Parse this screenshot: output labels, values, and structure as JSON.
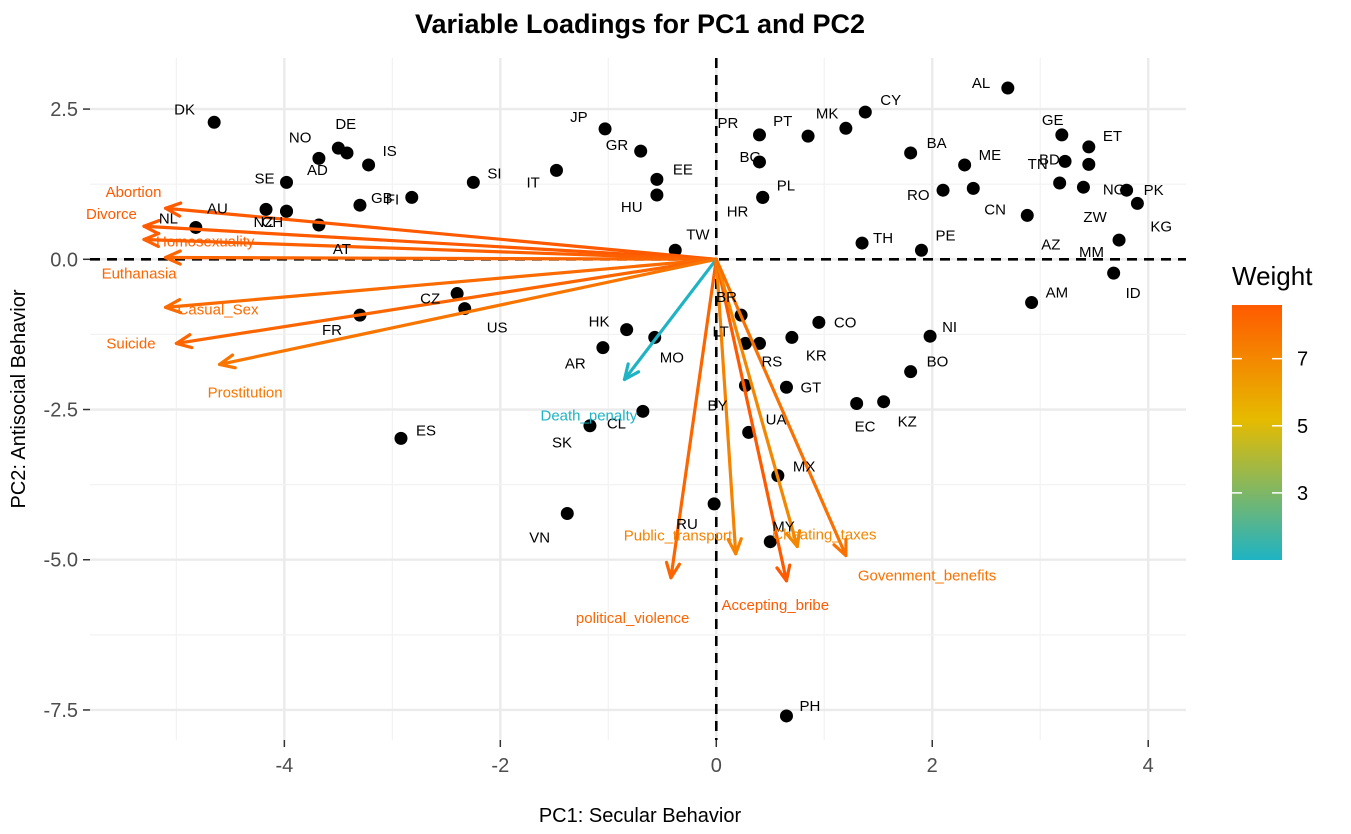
{
  "chart_data": {
    "type": "scatter",
    "title": "Variable Loadings for PC1 and PC2",
    "xlabel": "PC1: Secular Behavior",
    "ylabel": "PC2: Antisocial Behavior",
    "xlim": [
      -5.8,
      4.35
    ],
    "ylim": [
      -8.0,
      3.35
    ],
    "x_ticks": [
      -4,
      -2,
      0,
      2,
      4
    ],
    "x_tick_labels": [
      "-4",
      "-2",
      "0",
      "2",
      "4"
    ],
    "y_ticks": [
      2.5,
      0.0,
      -2.5,
      -5.0,
      -7.5
    ],
    "y_tick_labels": [
      "2.5",
      "0.0",
      "-2.5",
      "-5.0",
      "-7.5"
    ],
    "grid": true,
    "reference_lines": [
      "x = 0 (dashed)",
      "y = 0 (dashed)"
    ],
    "points": [
      {
        "label": "AL",
        "x": 2.7,
        "y": 2.85
      },
      {
        "label": "CY",
        "x": 1.38,
        "y": 2.45
      },
      {
        "label": "MK",
        "x": 1.2,
        "y": 2.18
      },
      {
        "label": "PT",
        "x": 0.85,
        "y": 2.05
      },
      {
        "label": "PR",
        "x": 0.4,
        "y": 2.07
      },
      {
        "label": "BG",
        "x": 0.4,
        "y": 1.62
      },
      {
        "label": "JP",
        "x": -1.03,
        "y": 2.17
      },
      {
        "label": "GR",
        "x": -0.7,
        "y": 1.8
      },
      {
        "label": "EE",
        "x": -0.55,
        "y": 1.33
      },
      {
        "label": "HU",
        "x": -0.55,
        "y": 1.07
      },
      {
        "label": "HR",
        "x": 0.43,
        "y": 1.03
      },
      {
        "label": "PL",
        "x": 0.43,
        "y": 1.03
      },
      {
        "label": "IT",
        "x": -1.48,
        "y": 1.48
      },
      {
        "label": "SI",
        "x": -2.25,
        "y": 1.28
      },
      {
        "label": "DK",
        "x": -4.65,
        "y": 2.28
      },
      {
        "label": "DE",
        "x": -3.5,
        "y": 1.85
      },
      {
        "label": "NO",
        "x": -3.68,
        "y": 1.68
      },
      {
        "label": "IS",
        "x": -3.22,
        "y": 1.57
      },
      {
        "label": "AD",
        "x": -3.42,
        "y": 1.77
      },
      {
        "label": "SE",
        "x": -3.98,
        "y": 1.28
      },
      {
        "label": "FI",
        "x": -2.82,
        "y": 1.03
      },
      {
        "label": "AU",
        "x": -4.17,
        "y": 0.83
      },
      {
        "label": "NZ",
        "x": -3.98,
        "y": 0.8
      },
      {
        "label": "GB",
        "x": -3.3,
        "y": 0.9
      },
      {
        "label": "AT",
        "x": -3.68,
        "y": 0.57
      },
      {
        "label": "NL",
        "x": -4.82,
        "y": 0.53
      },
      {
        "label": "CH",
        "x": -3.98,
        "y": 0.8
      },
      {
        "label": "TW",
        "x": -0.38,
        "y": 0.15
      },
      {
        "label": "CZ",
        "x": -2.4,
        "y": -0.57
      },
      {
        "label": "US",
        "x": -2.33,
        "y": -0.82
      },
      {
        "label": "FR",
        "x": -3.3,
        "y": -0.93
      },
      {
        "label": "HK",
        "x": -0.83,
        "y": -1.17
      },
      {
        "label": "AR",
        "x": -1.05,
        "y": -1.47
      },
      {
        "label": "MO",
        "x": -0.57,
        "y": -1.3
      },
      {
        "label": "BR",
        "x": 0.23,
        "y": -0.93
      },
      {
        "label": "LT",
        "x": 0.27,
        "y": -1.4
      },
      {
        "label": "RS",
        "x": 0.4,
        "y": -1.4
      },
      {
        "label": "KR",
        "x": 0.7,
        "y": -1.3
      },
      {
        "label": "CO",
        "x": 0.95,
        "y": -1.05
      },
      {
        "label": "NI",
        "x": 1.98,
        "y": -1.28
      },
      {
        "label": "BO",
        "x": 1.8,
        "y": -1.87
      },
      {
        "label": "GT",
        "x": 0.65,
        "y": -2.13
      },
      {
        "label": "BY",
        "x": 0.27,
        "y": -2.1
      },
      {
        "label": "UA",
        "x": 0.3,
        "y": -2.88
      },
      {
        "label": "EC",
        "x": 1.3,
        "y": -2.4
      },
      {
        "label": "KZ",
        "x": 1.55,
        "y": -2.37
      },
      {
        "label": "MX",
        "x": 0.57,
        "y": -3.6
      },
      {
        "label": "ES",
        "x": -2.92,
        "y": -2.98
      },
      {
        "label": "SK",
        "x": -1.17,
        "y": -2.77
      },
      {
        "label": "CL",
        "x": -0.68,
        "y": -2.53
      },
      {
        "label": "VN",
        "x": -1.38,
        "y": -4.23
      },
      {
        "label": "RU",
        "x": -0.02,
        "y": -4.07
      },
      {
        "label": "MY",
        "x": 0.5,
        "y": -4.7
      },
      {
        "label": "PH",
        "x": 0.65,
        "y": -7.6
      },
      {
        "label": "BA",
        "x": 1.8,
        "y": 1.77
      },
      {
        "label": "ME",
        "x": 2.3,
        "y": 1.57
      },
      {
        "label": "RO",
        "x": 2.1,
        "y": 1.15
      },
      {
        "label": "CN",
        "x": 2.38,
        "y": 1.18
      },
      {
        "label": "TH",
        "x": 1.35,
        "y": 0.27
      },
      {
        "label": "PE",
        "x": 1.9,
        "y": 0.15
      },
      {
        "label": "GE",
        "x": 3.2,
        "y": 2.07
      },
      {
        "label": "ET",
        "x": 3.45,
        "y": 1.87
      },
      {
        "label": "BD",
        "x": 3.23,
        "y": 1.63
      },
      {
        "label": "NG",
        "x": 3.45,
        "y": 1.58
      },
      {
        "label": "TN",
        "x": 3.18,
        "y": 1.27
      },
      {
        "label": "ZW",
        "x": 3.4,
        "y": 1.2
      },
      {
        "label": "PK",
        "x": 3.8,
        "y": 1.15
      },
      {
        "label": "KG",
        "x": 3.9,
        "y": 0.93
      },
      {
        "label": "AZ",
        "x": 2.88,
        "y": 0.73
      },
      {
        "label": "MM",
        "x": 3.73,
        "y": 0.32
      },
      {
        "label": "ID",
        "x": 3.68,
        "y": -0.23
      },
      {
        "label": "AM",
        "x": 2.92,
        "y": -0.72
      }
    ],
    "loadings": [
      {
        "label": "Abortion",
        "x": -5.1,
        "y": 0.85,
        "weight": 8.6
      },
      {
        "label": "Divorce",
        "x": -5.3,
        "y": 0.55,
        "weight": 8.6
      },
      {
        "label": "Homosexuality",
        "x": -5.3,
        "y": 0.33,
        "weight": 8.4
      },
      {
        "label": "Euthanasia",
        "x": -5.1,
        "y": 0.03,
        "weight": 8.2
      },
      {
        "label": "Casual_Sex",
        "x": -5.1,
        "y": -0.8,
        "weight": 8.0
      },
      {
        "label": "Suicide",
        "x": -5.0,
        "y": -1.4,
        "weight": 8.2
      },
      {
        "label": "Prostitution",
        "x": -4.6,
        "y": -1.75,
        "weight": 7.6
      },
      {
        "label": "Death_penalty",
        "x": -0.85,
        "y": -2.0,
        "weight": 1.0
      },
      {
        "label": "political_violence",
        "x": -0.42,
        "y": -5.3,
        "weight": 8.2
      },
      {
        "label": "Public_transport",
        "x": 0.18,
        "y": -4.9,
        "weight": 7.2
      },
      {
        "label": "Accepting_bribe",
        "x": 0.65,
        "y": -5.35,
        "weight": 8.6
      },
      {
        "label": "Cheating_taxes",
        "x": 0.75,
        "y": -4.78,
        "weight": 7.0
      },
      {
        "label": "Govenment_benefits",
        "x": 1.2,
        "y": -4.93,
        "weight": 7.8
      }
    ],
    "legend": {
      "title": "Weight",
      "ticks": [
        "3",
        "5",
        "7"
      ],
      "tick_values": [
        3,
        5,
        7
      ],
      "range": [
        1.0,
        8.6
      ],
      "colors": [
        "#1fb3c4",
        "#e6bb00",
        "#ff5a00"
      ],
      "placement": "right"
    }
  }
}
